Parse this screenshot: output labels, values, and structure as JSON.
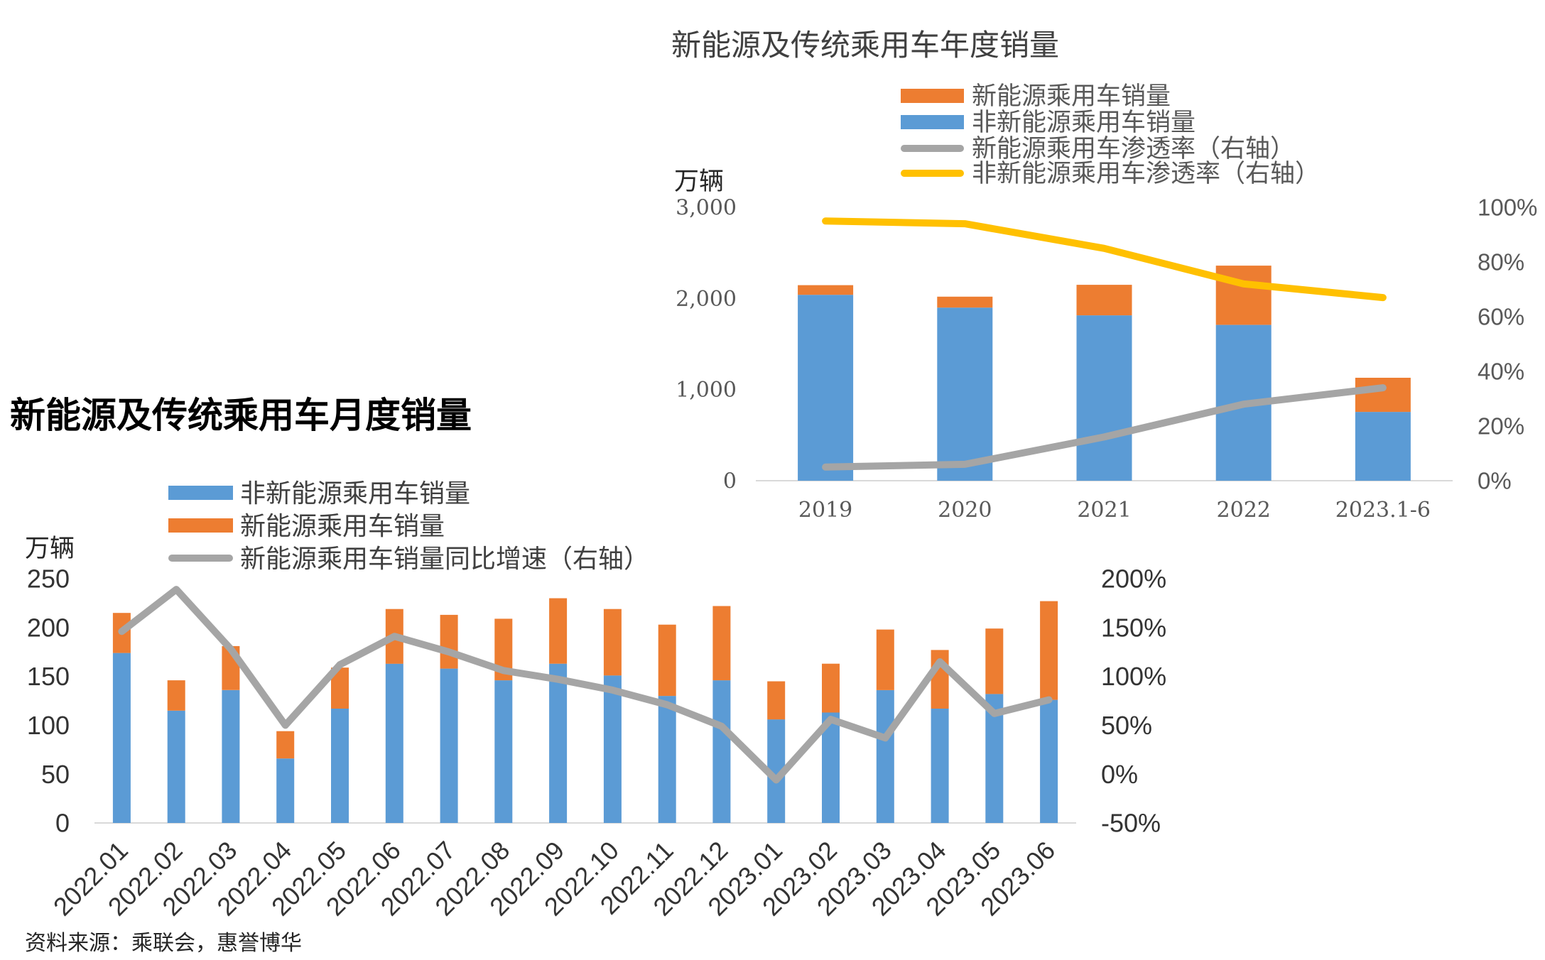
{
  "source_note": "资料来源：乘联会，惠誉博华",
  "chart_data": [
    {
      "type": "bar",
      "stacked": true,
      "title": "新能源及传统乘用车年度销量",
      "ylabel": "万辆",
      "categories": [
        "2019",
        "2020",
        "2021",
        "2022",
        "2023.1-6"
      ],
      "ylim": [
        0,
        3000
      ],
      "yticks": [
        0,
        1000,
        2000,
        3000
      ],
      "ytick_labels": [
        "0",
        "1,000",
        "2,000",
        "3,000"
      ],
      "y2lim": [
        0,
        100
      ],
      "y2ticks": [
        0,
        20,
        40,
        60,
        80,
        100
      ],
      "y2tick_labels": [
        "0%",
        "20%",
        "40%",
        "60%",
        "80%",
        "100%"
      ],
      "grid": false,
      "legend_position": "top",
      "series": [
        {
          "name": "新能源乘用车销量",
          "type": "bar",
          "color": "#ED7D31",
          "values": [
            106,
            120,
            335,
            650,
            375
          ]
        },
        {
          "name": "非新能源乘用车销量",
          "type": "bar",
          "color": "#5B9BD5",
          "values": [
            2040,
            1900,
            1815,
            1710,
            755
          ]
        },
        {
          "name": "新能源乘用车渗透率（右轴）",
          "type": "line",
          "color": "#A5A5A5",
          "values": [
            5,
            6,
            16,
            28,
            34
          ]
        },
        {
          "name": "非新能源乘用车渗透率（右轴）",
          "type": "line",
          "color": "#FFC000",
          "values": [
            95,
            94,
            85,
            72,
            67
          ]
        }
      ]
    },
    {
      "type": "bar",
      "stacked": true,
      "title": "新能源及传统乘用车月度销量",
      "ylabel": "万辆",
      "categories": [
        "2022.01",
        "2022.02",
        "2022.03",
        "2022.04",
        "2022.05",
        "2022.06",
        "2022.07",
        "2022.08",
        "2022.09",
        "2022.10",
        "2022.11",
        "2022.12",
        "2023.01",
        "2023.02",
        "2023.03",
        "2023.04",
        "2023.05",
        "2023.06"
      ],
      "ylim": [
        0,
        250
      ],
      "yticks": [
        0,
        50,
        100,
        150,
        200,
        250
      ],
      "ytick_labels": [
        "0",
        "50",
        "100",
        "150",
        "200",
        "250"
      ],
      "y2lim": [
        -50,
        200
      ],
      "y2ticks": [
        -50,
        0,
        50,
        100,
        150,
        200
      ],
      "y2tick_labels": [
        "-50%",
        "0%",
        "50%",
        "100%",
        "150%",
        "200%"
      ],
      "grid": false,
      "legend_position": "top-left",
      "series": [
        {
          "name": "非新能源乘用车销量",
          "type": "bar",
          "color": "#5B9BD5",
          "values": [
            174,
            115,
            136,
            66,
            117,
            163,
            158,
            146,
            163,
            151,
            130,
            146,
            106,
            113,
            136,
            117,
            132,
            126
          ]
        },
        {
          "name": "新能源乘用车销量",
          "type": "bar",
          "color": "#ED7D31",
          "values": [
            41,
            31,
            45,
            28,
            42,
            56,
            55,
            63,
            67,
            68,
            73,
            76,
            39,
            50,
            62,
            60,
            67,
            101
          ]
        },
        {
          "name": "新能源乘用车销量同比增速（右轴）",
          "type": "line",
          "color": "#A5A5A5",
          "values": [
            146,
            189,
            128,
            50,
            112,
            141,
            125,
            106,
            97,
            86,
            71,
            49,
            -6,
            56,
            37,
            115,
            62,
            76
          ]
        }
      ]
    }
  ]
}
